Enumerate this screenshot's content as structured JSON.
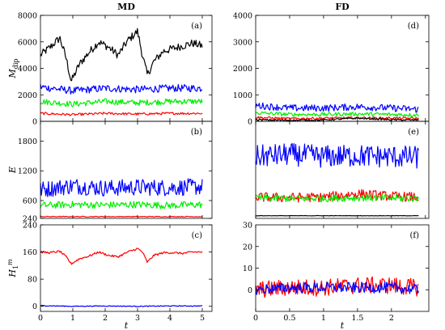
{
  "chart_data": [
    {
      "type": "line",
      "title": "MD",
      "panel_label": "(a)",
      "xlabel": "",
      "ylabel": "M_dip",
      "ylabel_main": "M",
      "ylabel_sub": "dip",
      "xlim": [
        0,
        5.3
      ],
      "ylim": [
        0,
        8000
      ],
      "yticks": [
        0,
        2000,
        4000,
        6000,
        8000
      ],
      "xticks": [
        0,
        1,
        2,
        3,
        4,
        5
      ],
      "show_xticklabels": false,
      "series": [
        {
          "color": "#000000",
          "x": [
            0,
            0.3,
            0.6,
            0.8,
            0.95,
            1.2,
            1.5,
            1.8,
            2.1,
            2.4,
            2.7,
            3.0,
            3.15,
            3.3,
            3.5,
            3.8,
            4.1,
            4.4,
            4.7,
            5.0
          ],
          "y": [
            5000,
            5600,
            6300,
            4700,
            3000,
            4300,
            5200,
            6000,
            5600,
            5000,
            6100,
            6800,
            5000,
            3500,
            4500,
            5300,
            5500,
            5700,
            5900,
            5700
          ],
          "noise": 300
        },
        {
          "color": "#0000ff",
          "x": [
            0,
            1,
            2,
            3,
            4,
            5
          ],
          "y": [
            2600,
            2300,
            2500,
            2400,
            2500,
            2500
          ],
          "noise": 280
        },
        {
          "color": "#00ee00",
          "x": [
            0,
            1,
            2,
            3,
            4,
            5
          ],
          "y": [
            1500,
            1300,
            1500,
            1400,
            1500,
            1500
          ],
          "noise": 220
        },
        {
          "color": "#ff0000",
          "x": [
            0,
            1,
            2,
            3,
            4,
            5
          ],
          "y": [
            600,
            500,
            600,
            550,
            600,
            600
          ],
          "noise": 90
        }
      ]
    },
    {
      "type": "line",
      "title": "",
      "panel_label": "(b)",
      "xlabel": "",
      "ylabel": "E",
      "xlim": [
        0,
        5.3
      ],
      "ylim": [
        240,
        2200
      ],
      "yticks": [
        240,
        600,
        1200,
        1800
      ],
      "xticks": [
        0,
        1,
        2,
        3,
        4,
        5
      ],
      "show_xticklabels": false,
      "series": [
        {
          "color": "#0000ff",
          "x": [
            0,
            1,
            2,
            3,
            4,
            5
          ],
          "y": [
            820,
            900,
            850,
            870,
            860,
            880
          ],
          "noise": 170
        },
        {
          "color": "#00ee00",
          "x": [
            0,
            1,
            2,
            3,
            4,
            5
          ],
          "y": [
            500,
            520,
            510,
            520,
            500,
            520
          ],
          "noise": 70
        },
        {
          "color": "#ff0000",
          "x": [
            0,
            1,
            2,
            3,
            4,
            5
          ],
          "y": [
            275,
            275,
            275,
            275,
            275,
            275
          ],
          "noise": 8
        }
      ]
    },
    {
      "type": "line",
      "title": "",
      "panel_label": "(c)",
      "xlabel": "t",
      "ylabel": "H_1^m",
      "ylabel_main": "H",
      "ylabel_sub": "1",
      "ylabel_sup": "m",
      "xlim": [
        0,
        5.3
      ],
      "ylim": [
        -15,
        240
      ],
      "yticks": [
        0,
        80,
        160,
        240
      ],
      "xticks": [
        0,
        1,
        2,
        3,
        4,
        5
      ],
      "show_xticklabels": true,
      "series": [
        {
          "color": "#ff0000",
          "x": [
            0,
            0.3,
            0.6,
            0.8,
            0.95,
            1.2,
            1.5,
            1.8,
            2.1,
            2.4,
            2.7,
            3.0,
            3.15,
            3.3,
            3.5,
            3.8,
            4.1,
            4.4,
            4.7,
            5.0
          ],
          "y": [
            160,
            158,
            162,
            145,
            125,
            140,
            148,
            160,
            150,
            146,
            160,
            170,
            160,
            130,
            150,
            158,
            158,
            156,
            160,
            160
          ],
          "noise": 3
        },
        {
          "color": "#0000ff",
          "x": [
            0,
            1,
            2,
            3,
            4,
            5
          ],
          "y": [
            2,
            0,
            1,
            0,
            1,
            1
          ],
          "noise": 1.2
        }
      ]
    },
    {
      "type": "line",
      "title": "FD",
      "panel_label": "(d)",
      "xlabel": "",
      "ylabel": "",
      "xlim": [
        0,
        2.55
      ],
      "ylim": [
        0,
        4000
      ],
      "yticks": [
        0,
        1000,
        2000,
        3000,
        4000
      ],
      "xticks": [
        0,
        0.5,
        1,
        1.5,
        2,
        2.5
      ],
      "show_xticklabels": false,
      "series": [
        {
          "color": "#0000ff",
          "x": [
            0,
            0.5,
            1,
            1.5,
            2,
            2.4
          ],
          "y": [
            600,
            500,
            500,
            550,
            500,
            450
          ],
          "noise": 130
        },
        {
          "color": "#00ee00",
          "x": [
            0,
            0.5,
            1,
            1.5,
            2,
            2.4
          ],
          "y": [
            320,
            260,
            260,
            280,
            260,
            240
          ],
          "noise": 70
        },
        {
          "color": "#ff0000",
          "x": [
            0,
            0.5,
            1,
            1.5,
            2,
            2.4
          ],
          "y": [
            150,
            100,
            120,
            130,
            120,
            110
          ],
          "noise": 45
        },
        {
          "color": "#000000",
          "x": [
            0,
            0.5,
            1,
            1.5,
            2,
            2.4
          ],
          "y": [
            60,
            40,
            50,
            120,
            60,
            50
          ],
          "noise": 30
        }
      ]
    },
    {
      "type": "line",
      "title": "",
      "panel_label": "(e)",
      "xlabel": "",
      "ylabel": "",
      "xlim": [
        0,
        2.55
      ],
      "ylim": [
        0,
        2200
      ],
      "yticks": [],
      "xticks": [
        0,
        0.5,
        1,
        1.5,
        2,
        2.5
      ],
      "show_xticklabels": false,
      "series": [
        {
          "color": "#0000ff",
          "x": [
            0,
            0.5,
            1,
            1.5,
            2,
            2.4
          ],
          "y": [
            1400,
            1450,
            1400,
            1420,
            1400,
            1380
          ],
          "noise": 260
        },
        {
          "color": "#ff0000",
          "x": [
            0,
            0.5,
            1,
            1.5,
            2,
            2.4
          ],
          "y": [
            480,
            470,
            480,
            560,
            500,
            480
          ],
          "noise": 110
        },
        {
          "color": "#00ee00",
          "x": [
            0,
            0.5,
            1,
            1.5,
            2,
            2.4
          ],
          "y": [
            460,
            450,
            450,
            470,
            460,
            450
          ],
          "noise": 80
        },
        {
          "color": "#000000",
          "x": [
            0,
            0.5,
            1,
            1.5,
            2,
            2.4
          ],
          "y": [
            60,
            60,
            60,
            60,
            60,
            60
          ],
          "noise": 4
        }
      ]
    },
    {
      "type": "line",
      "title": "",
      "panel_label": "(f)",
      "xlabel": "t",
      "ylabel": "",
      "top_tick_label": "30",
      "xlim": [
        0,
        2.55
      ],
      "ylim": [
        -10,
        30
      ],
      "yticks": [
        0,
        10,
        20
      ],
      "xticks": [
        0,
        0.5,
        1,
        1.5,
        2
      ],
      "show_xticklabels": true,
      "series": [
        {
          "color": "#ff0000",
          "x": [
            0,
            0.5,
            1,
            1.5,
            2,
            2.4
          ],
          "y": [
            0,
            1,
            1,
            2,
            2,
            1
          ],
          "noise": 4
        },
        {
          "color": "#0000ff",
          "x": [
            0,
            0.5,
            1,
            1.5,
            2,
            2.4
          ],
          "y": [
            0,
            1,
            1,
            1,
            1,
            0
          ],
          "noise": 2.5
        }
      ]
    }
  ]
}
